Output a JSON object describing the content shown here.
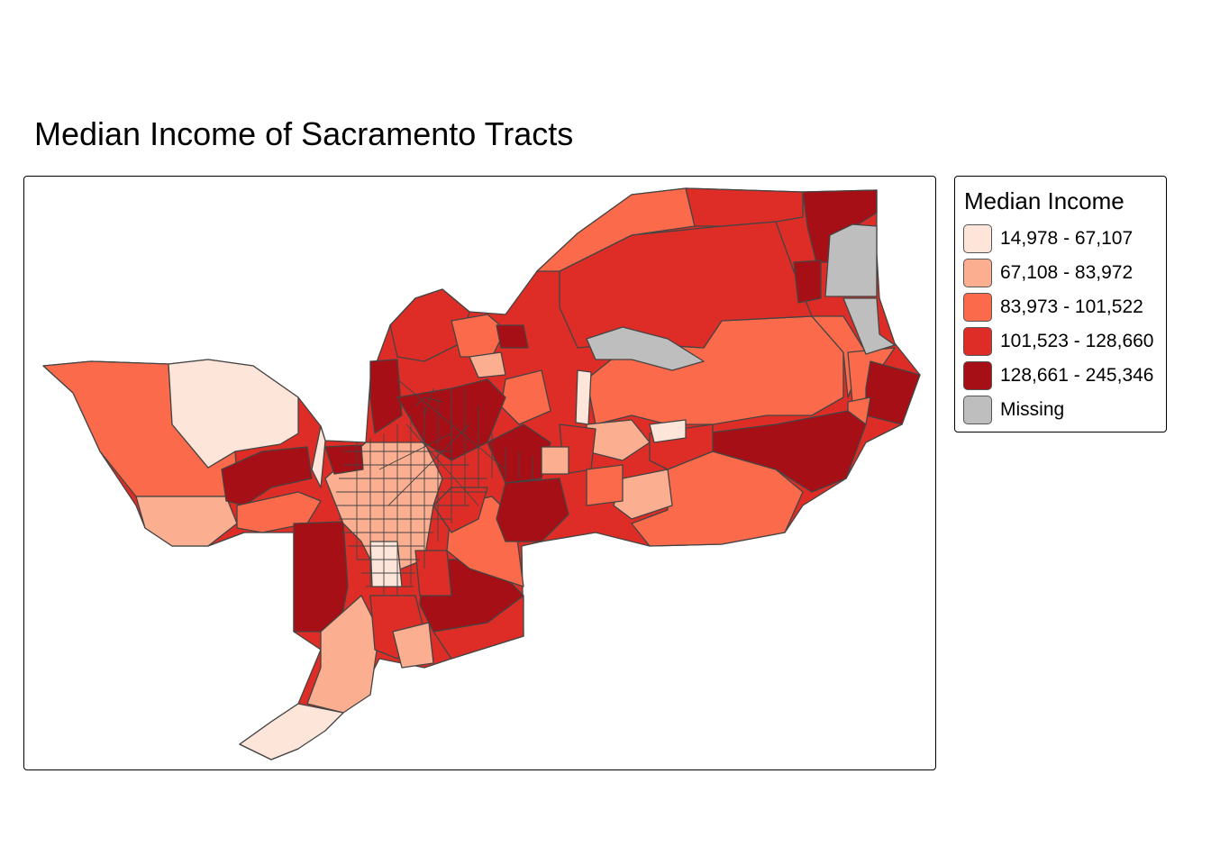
{
  "title": "Median Income of Sacramento Tracts",
  "legend": {
    "title": "Median Income",
    "items": [
      {
        "label": "14,978 - 67,107",
        "color": "#fee5d9"
      },
      {
        "label": "67,108 - 83,972",
        "color": "#fcae91"
      },
      {
        "label": "83,973 - 101,522",
        "color": "#fb6a4a"
      },
      {
        "label": "101,523 - 128,660",
        "color": "#de2d26"
      },
      {
        "label": "128,661 - 245,346",
        "color": "#a50f15"
      },
      {
        "label": "Missing",
        "color": "#bebebe"
      }
    ]
  },
  "colors": {
    "class1": "#fee5d9",
    "class2": "#fcae91",
    "class3": "#fb6a4a",
    "class4": "#de2d26",
    "class5": "#a50f15",
    "missing": "#bebebe",
    "border": "#444444"
  }
}
